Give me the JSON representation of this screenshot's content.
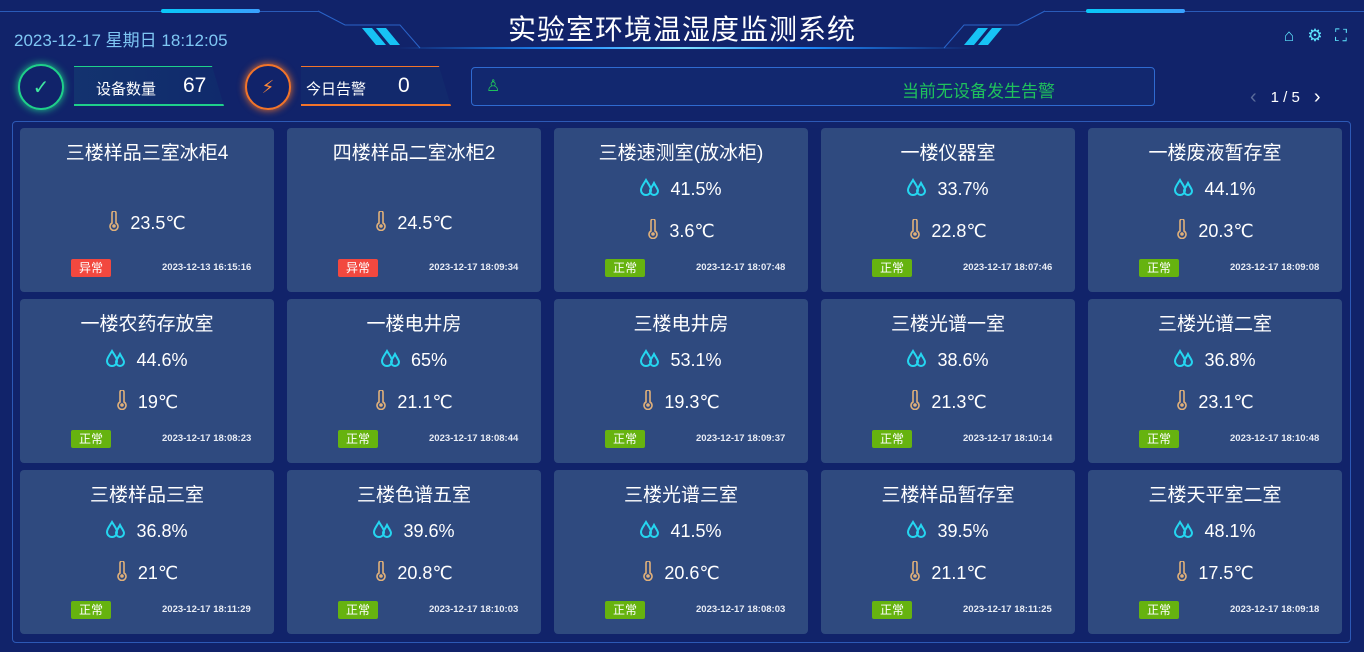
{
  "header": {
    "datetime": "2023-12-17 星期日 18:12:05",
    "title": "实验室环境温湿度监测系统",
    "icons": [
      "home-icon",
      "settings-gear-icon",
      "fullscreen-icon"
    ]
  },
  "stats": {
    "device_label": "设备数量",
    "device_count": "67",
    "alarm_label": "今日告警",
    "alarm_count": "0"
  },
  "alarm_bar": {
    "message": "当前无设备发生告警",
    "icon": "siren-icon"
  },
  "pager": {
    "text": "1 / 5"
  },
  "colors": {
    "normal": "#66b30f",
    "abnormal": "#f2483f",
    "humidity_icon": "#25d6f0",
    "temp_icon": "#e0b07a",
    "alarm_text": "#1fc15c"
  },
  "cards": [
    {
      "name": "三楼样品三室冰柜4",
      "humidity": null,
      "temp": "23.5℃",
      "status": "异常",
      "time": "2023-12-13 16:15:16"
    },
    {
      "name": "四楼样品二室冰柜2",
      "humidity": null,
      "temp": "24.5℃",
      "status": "异常",
      "time": "2023-12-17 18:09:34"
    },
    {
      "name": "三楼速测室(放冰柜)",
      "humidity": "41.5%",
      "temp": "3.6℃",
      "status": "正常",
      "time": "2023-12-17 18:07:48"
    },
    {
      "name": "一楼仪器室",
      "humidity": "33.7%",
      "temp": "22.8℃",
      "status": "正常",
      "time": "2023-12-17 18:07:46"
    },
    {
      "name": "一楼废液暂存室",
      "humidity": "44.1%",
      "temp": "20.3℃",
      "status": "正常",
      "time": "2023-12-17 18:09:08"
    },
    {
      "name": "一楼农药存放室",
      "humidity": "44.6%",
      "temp": "19℃",
      "status": "正常",
      "time": "2023-12-17 18:08:23"
    },
    {
      "name": "一楼电井房",
      "humidity": "65%",
      "temp": "21.1℃",
      "status": "正常",
      "time": "2023-12-17 18:08:44"
    },
    {
      "name": "三楼电井房",
      "humidity": "53.1%",
      "temp": "19.3℃",
      "status": "正常",
      "time": "2023-12-17 18:09:37"
    },
    {
      "name": "三楼光谱一室",
      "humidity": "38.6%",
      "temp": "21.3℃",
      "status": "正常",
      "time": "2023-12-17 18:10:14"
    },
    {
      "name": "三楼光谱二室",
      "humidity": "36.8%",
      "temp": "23.1℃",
      "status": "正常",
      "time": "2023-12-17 18:10:48"
    },
    {
      "name": "三楼样品三室",
      "humidity": "36.8%",
      "temp": "21℃",
      "status": "正常",
      "time": "2023-12-17 18:11:29"
    },
    {
      "name": "三楼色谱五室",
      "humidity": "39.6%",
      "temp": "20.8℃",
      "status": "正常",
      "time": "2023-12-17 18:10:03"
    },
    {
      "name": "三楼光谱三室",
      "humidity": "41.5%",
      "temp": "20.6℃",
      "status": "正常",
      "time": "2023-12-17 18:08:03"
    },
    {
      "name": "三楼样品暂存室",
      "humidity": "39.5%",
      "temp": "21.1℃",
      "status": "正常",
      "time": "2023-12-17 18:11:25"
    },
    {
      "name": "三楼天平室二室",
      "humidity": "48.1%",
      "temp": "17.5℃",
      "status": "正常",
      "time": "2023-12-17 18:09:18"
    }
  ]
}
